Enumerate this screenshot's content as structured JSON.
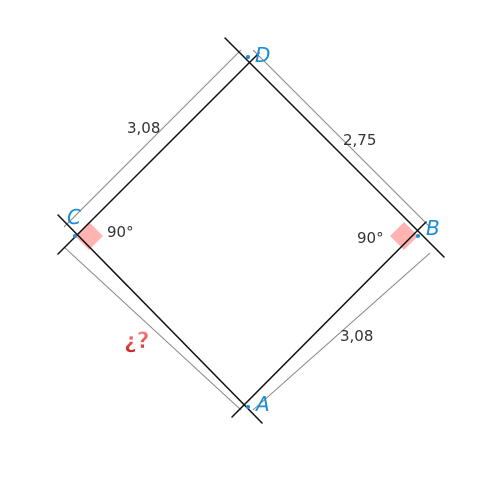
{
  "figure": {
    "vertices": {
      "A": "A",
      "B": "B",
      "C": "C",
      "D": "D"
    },
    "sides": {
      "CD": "3,08",
      "DB": "2,75",
      "BA": "3,08",
      "CA": "¿?"
    },
    "angles": {
      "C": "90°",
      "B": "90°"
    },
    "colors": {
      "outline": "#111111",
      "dimension_line": "#888888",
      "vertex_label": "#1a8cd8",
      "right_angle_fill": "#ffb3b3",
      "unknown_text": "#e03a3a"
    }
  }
}
